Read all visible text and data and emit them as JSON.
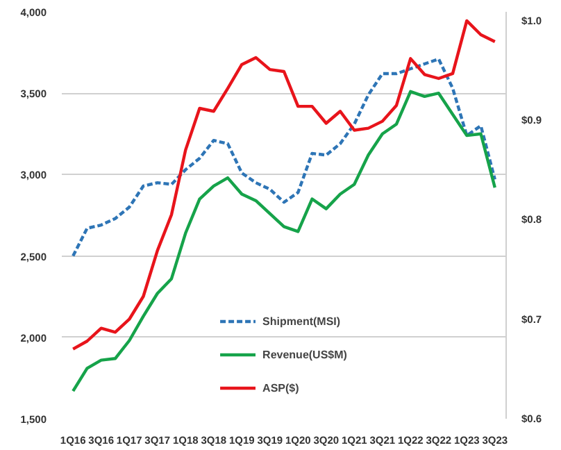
{
  "chart_data": {
    "type": "line",
    "categories": [
      "1Q16",
      null,
      "3Q16",
      null,
      "1Q17",
      null,
      "3Q17",
      null,
      "1Q18",
      null,
      "3Q18",
      null,
      "1Q19",
      null,
      "3Q19",
      null,
      "1Q20",
      null,
      "3Q20",
      null,
      "1Q21",
      null,
      "3Q21",
      null,
      "1Q22",
      null,
      "3Q22",
      null,
      "1Q23",
      null,
      "3Q23"
    ],
    "series": [
      {
        "name": "Shipment(MSI)",
        "color": "#2e75b6",
        "line_style": "dashed",
        "values": [
          2500,
          2670,
          2690,
          2730,
          2800,
          2930,
          2950,
          2940,
          3030,
          3100,
          3210,
          3190,
          3010,
          2950,
          2910,
          2830,
          2890,
          3130,
          3120,
          3190,
          3310,
          3490,
          3620,
          3620,
          3650,
          3680,
          3710,
          3530,
          3240,
          3300,
          2970
        ]
      },
      {
        "name": "Revenue(US$M)",
        "color": "#16a34a",
        "line_style": "solid",
        "values": [
          1670,
          1810,
          1860,
          1870,
          1980,
          2130,
          2270,
          2360,
          2640,
          2850,
          2930,
          2980,
          2880,
          2840,
          2760,
          2680,
          2650,
          2850,
          2790,
          2880,
          2940,
          3120,
          3250,
          3310,
          3510,
          3480,
          3500,
          3370,
          3240,
          3250,
          2920
        ]
      },
      {
        "name": "ASP($)",
        "color": "#e8141b",
        "line_style": "solid",
        "axis": "y2",
        "values": [
          0.67,
          0.678,
          0.691,
          0.687,
          0.7,
          0.723,
          0.769,
          0.805,
          0.87,
          0.912,
          0.909,
          0.932,
          0.956,
          0.963,
          0.951,
          0.949,
          0.914,
          0.914,
          0.897,
          0.909,
          0.89,
          0.892,
          0.899,
          0.915,
          0.962,
          0.946,
          0.942,
          0.947,
          1.0,
          0.986,
          0.979
        ]
      }
    ],
    "ylim": [
      1500,
      4000
    ],
    "yticks": [
      {
        "value": 1500,
        "label": "1,500"
      },
      {
        "value": 2000,
        "label": "2,000"
      },
      {
        "value": 2500,
        "label": "2,500"
      },
      {
        "value": 3000,
        "label": "3,000"
      },
      {
        "value": 3500,
        "label": "3,500"
      },
      {
        "value": 4000,
        "label": "4,000"
      }
    ],
    "y2lim": [
      0.6,
      1.009
    ],
    "y2ticks": [
      {
        "value": 0.6,
        "label": "$0.6"
      },
      {
        "value": 0.7,
        "label": "$0.7"
      },
      {
        "value": 0.8,
        "label": "$0.8"
      },
      {
        "value": 0.9,
        "label": "$0.9"
      },
      {
        "value": 1.0,
        "label": "$1.0"
      }
    ],
    "grid": "y",
    "legend": "bottom",
    "marker": "none"
  }
}
